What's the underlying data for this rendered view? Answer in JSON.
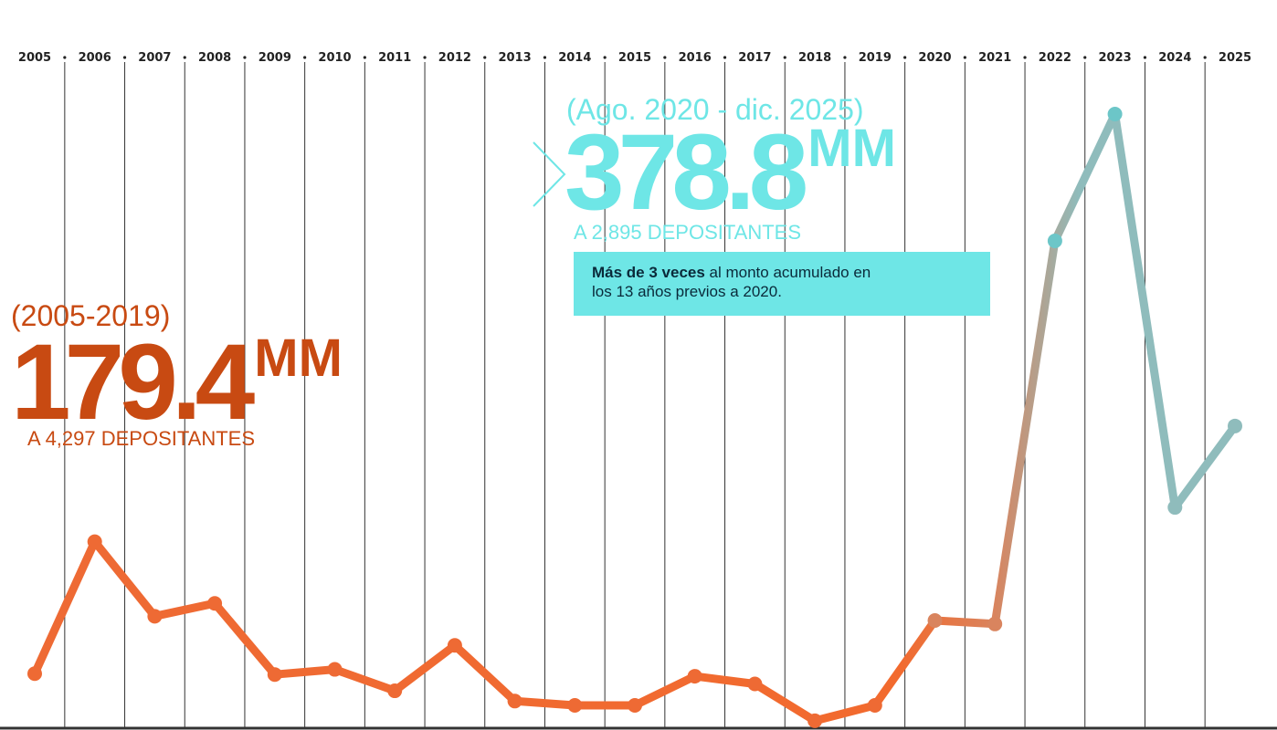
{
  "chart_data": {
    "type": "line",
    "categories": [
      "2005",
      "2006",
      "2007",
      "2008",
      "2009",
      "2010",
      "2011",
      "2012",
      "2013",
      "2014",
      "2015",
      "2016",
      "2017",
      "2018",
      "2019",
      "2020",
      "2021",
      "2022",
      "2023",
      "2024",
      "2025"
    ],
    "series": [
      {
        "values": [
          37,
          191,
          104,
          119,
          36,
          42,
          17,
          70,
          5,
          0,
          0,
          34,
          25,
          -18,
          0,
          99,
          95,
          542,
          690,
          231,
          326
        ]
      }
    ],
    "ylim": [
      -30,
      700
    ],
    "grid": true,
    "colors": {
      "early_series": "#ee6a34",
      "recent_series": "#6cc6c8",
      "early_text": "#c84a12",
      "recent_text": "#6ee6e6",
      "axis": "#222222"
    }
  },
  "annotations": {
    "left": {
      "period": "(2005-2019)",
      "amount": "179.4",
      "unit": "MM",
      "depositors": "A 4,297 DEPOSITANTES"
    },
    "right": {
      "period": "(Ago. 2020 - dic. 2025)",
      "amount": "378.8",
      "unit": "MM",
      "depositors": "A 2,895 DEPOSITANTES",
      "note_bold": "Más de 3 veces",
      "note_rest": " al monto acumulado en",
      "note_line2": "los 13 años previos a 2020."
    }
  }
}
